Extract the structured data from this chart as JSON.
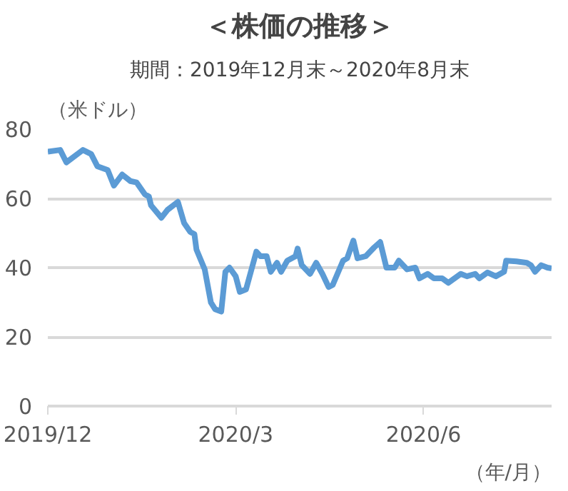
{
  "chart_data": {
    "type": "line",
    "title": "＜株価の推移＞",
    "subtitle": "期間：2019年12月末～2020年8月末",
    "ylabel": "（米ドル）",
    "xlabel": "（年/月）",
    "x": [
      "2019-12-31",
      "2020-01-06",
      "2020-01-09",
      "2020-01-17",
      "2020-01-21",
      "2020-01-24",
      "2020-01-29",
      "2020-02-01",
      "2020-02-05",
      "2020-02-09",
      "2020-02-12",
      "2020-02-16",
      "2020-02-18",
      "2020-02-19",
      "2020-02-24",
      "2020-02-27",
      "2020-03-03",
      "2020-03-06",
      "2020-03-09",
      "2020-03-11",
      "2020-03-12",
      "2020-03-16",
      "2020-03-19",
      "2020-03-21",
      "2020-03-24",
      "2020-03-26",
      "2020-03-28",
      "2020-03-31",
      "2020-04-02",
      "2020-04-05",
      "2020-04-10",
      "2020-04-12",
      "2020-04-15",
      "2020-04-17",
      "2020-04-20",
      "2020-04-22",
      "2020-04-25",
      "2020-04-29",
      "2020-04-30",
      "2020-05-02",
      "2020-05-06",
      "2020-05-09",
      "2020-05-12",
      "2020-05-15",
      "2020-05-17",
      "2020-05-22",
      "2020-05-24",
      "2020-05-27",
      "2020-05-29",
      "2020-06-02",
      "2020-06-06",
      "2020-06-09",
      "2020-06-12",
      "2020-06-16",
      "2020-06-18",
      "2020-06-22",
      "2020-06-26",
      "2020-06-28",
      "2020-07-02",
      "2020-07-05",
      "2020-07-09",
      "2020-07-12",
      "2020-07-15",
      "2020-07-18",
      "2020-07-21",
      "2020-07-25",
      "2020-07-27",
      "2020-07-31",
      "2020-08-04",
      "2020-08-08",
      "2020-08-09",
      "2020-08-14",
      "2020-08-19",
      "2020-08-21",
      "2020-08-23",
      "2020-08-26",
      "2020-08-29",
      "2020-08-31"
    ],
    "series": [
      {
        "color": "#5b9bd5",
        "values": [
          73.5,
          74,
          70.4,
          74,
          72.8,
          69.3,
          68.2,
          63.7,
          66.9,
          65,
          64.6,
          61.2,
          60.5,
          58,
          54.4,
          56.7,
          59,
          52.9,
          50.3,
          49.7,
          45.2,
          39.5,
          29.9,
          28,
          27.3,
          38.8,
          40,
          37.5,
          33,
          33.7,
          44.6,
          43.3,
          43.3,
          38.8,
          41.4,
          38.8,
          42,
          43.3,
          45.5,
          40.7,
          38.2,
          41.4,
          38.2,
          34.4,
          35,
          42,
          42.7,
          47.8,
          42.7,
          43.3,
          45.8,
          47.4,
          40,
          40,
          42,
          39.5,
          40,
          36.9,
          38.2,
          36.9,
          36.9,
          35.6,
          36.9,
          38.2,
          37.5,
          38.2,
          36.9,
          38.6,
          37.5,
          38.8,
          42,
          41.8,
          41.4,
          40.7,
          38.8,
          40.7,
          40,
          39.8
        ]
      }
    ],
    "xlim": [
      "2019-12-31",
      "2020-08-31"
    ],
    "xticks": [
      {
        "value": "2019-12-31",
        "label": "2019/12"
      },
      {
        "value": "2020-03-31",
        "label": "2020/3"
      },
      {
        "value": "2020-06-30",
        "label": "2020/6"
      }
    ],
    "ylim": [
      0,
      80
    ],
    "yticks": [
      0,
      20,
      40,
      60,
      80
    ],
    "grid": "y",
    "line_style": "solid"
  }
}
